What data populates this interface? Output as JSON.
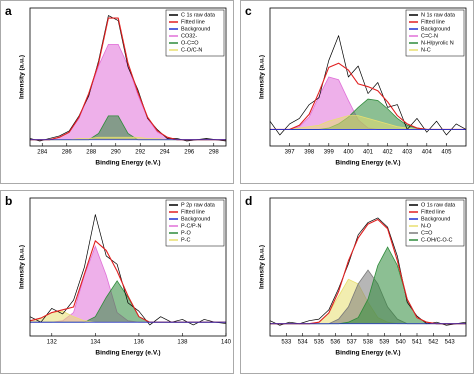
{
  "chart_data": [
    {
      "type": "line",
      "label": "a",
      "xlabel": "Binding Energy (e.V.)",
      "ylabel": "Intensity (a.u.)",
      "legend": "top-right",
      "x": [
        283,
        283.8,
        284.6,
        285.4,
        286.2,
        287,
        287.8,
        288.6,
        289.4,
        290.2,
        291,
        291.8,
        292.6,
        293.4,
        294.2,
        295,
        295.8,
        296.6,
        297.4,
        298.2,
        299
      ],
      "xlim": [
        283,
        299
      ],
      "xticks": [
        284,
        286,
        288,
        290,
        292,
        294,
        296,
        298
      ],
      "ylim": [
        0,
        110
      ],
      "series": [
        {
          "name": "C 1s raw data",
          "color": "#000000",
          "kind": "line",
          "values": [
            6,
            4,
            6,
            8,
            12,
            24,
            40,
            68,
            104,
            100,
            63,
            45,
            22,
            13,
            6,
            6,
            4,
            5,
            6,
            5,
            4
          ]
        },
        {
          "name": "Fitted line",
          "color": "#e02020",
          "kind": "line",
          "values": [
            5,
            5,
            5,
            7,
            11,
            23,
            42,
            66,
            102,
            102,
            66,
            43,
            23,
            12,
            7,
            5,
            5,
            5,
            5,
            5,
            5
          ]
        },
        {
          "name": "Background",
          "color": "#2030d0",
          "kind": "line",
          "values": [
            5,
            5,
            5,
            5,
            5,
            5,
            5,
            5,
            5,
            5,
            5,
            5,
            5,
            5,
            5,
            5,
            5,
            5,
            5,
            5,
            5
          ]
        },
        {
          "name": "CO32-",
          "color": "#e070d8",
          "kind": "area",
          "values": [
            5,
            5,
            5,
            7,
            11,
            22,
            41,
            64,
            81,
            81,
            64,
            41,
            22,
            11,
            7,
            5,
            5,
            5,
            5,
            5,
            5
          ]
        },
        {
          "name": "O-C=O",
          "color": "#2e8b3a",
          "kind": "area",
          "values": [
            5,
            5,
            5,
            5,
            5,
            5,
            5,
            10,
            24,
            24,
            10,
            5,
            5,
            5,
            5,
            5,
            5,
            5,
            5,
            5,
            5
          ]
        },
        {
          "name": "C-O/C-N",
          "color": "#e8df70",
          "kind": "area",
          "values": [
            5,
            5,
            5,
            5,
            5,
            6,
            6,
            7,
            7,
            7,
            7,
            7,
            6,
            6,
            5,
            5,
            5,
            5,
            5,
            5,
            5
          ]
        }
      ]
    },
    {
      "type": "line",
      "label": "b",
      "xlabel": "Binding Energy (e.V.)",
      "ylabel": "Intensity (a.u.)",
      "legend": "top-right",
      "x": [
        131,
        131.5,
        132,
        132.5,
        133,
        133.5,
        134,
        134.5,
        135,
        135.5,
        136,
        136.5,
        137,
        137.5,
        138,
        138.5,
        139,
        139.5,
        140
      ],
      "xlim": [
        131,
        140
      ],
      "xticks": [
        132,
        134,
        136,
        138,
        140
      ],
      "ylim": [
        0,
        100
      ],
      "series": [
        {
          "name": "P 2p raw data",
          "color": "#000000",
          "kind": "line",
          "values": [
            14,
            10,
            20,
            16,
            26,
            50,
            88,
            58,
            52,
            24,
            18,
            8,
            14,
            10,
            12,
            8,
            12,
            10,
            9
          ]
        },
        {
          "name": "Fitted line",
          "color": "#e02020",
          "kind": "line",
          "values": [
            11,
            13,
            17,
            19,
            21,
            45,
            69,
            62,
            47,
            29,
            14,
            10,
            10,
            10,
            10,
            10,
            10,
            10,
            10
          ]
        },
        {
          "name": "Background",
          "color": "#2030d0",
          "kind": "line",
          "values": [
            10,
            10,
            10,
            10,
            10,
            10,
            10,
            10,
            10,
            10,
            10,
            10,
            10,
            10,
            10,
            10,
            10,
            10,
            10
          ]
        },
        {
          "name": "P-C/P-N",
          "color": "#e070d8",
          "kind": "area",
          "values": [
            10,
            10,
            10,
            11,
            17,
            44,
            65,
            44,
            17,
            11,
            10,
            10,
            10,
            10,
            10,
            10,
            10,
            10,
            10
          ]
        },
        {
          "name": "P-O",
          "color": "#2e8b3a",
          "kind": "area",
          "values": [
            10,
            10,
            10,
            10,
            10,
            10,
            14,
            28,
            40,
            28,
            14,
            10,
            10,
            10,
            10,
            10,
            10,
            10,
            10
          ]
        },
        {
          "name": "P-C",
          "color": "#e8df70",
          "kind": "area",
          "values": [
            11,
            13,
            17,
            18,
            14,
            11,
            10,
            10,
            10,
            10,
            10,
            10,
            10,
            10,
            10,
            10,
            10,
            10,
            10
          ]
        }
      ]
    },
    {
      "type": "line",
      "label": "c",
      "xlabel": "Binding Energy (e.V.)",
      "ylabel": "Intensity (a.u.)",
      "legend": "top-right",
      "x": [
        396,
        396.5,
        397,
        397.5,
        398,
        398.5,
        399,
        399.5,
        400,
        400.5,
        401,
        401.5,
        402,
        402.5,
        403,
        403.5,
        404,
        404.5,
        405,
        405.5,
        406
      ],
      "xlim": [
        396,
        406
      ],
      "xticks": [
        397,
        398,
        399,
        400,
        401,
        402,
        403,
        404,
        405
      ],
      "ylim": [
        0,
        100
      ],
      "series": [
        {
          "name": "N 1s raw data",
          "color": "#000000",
          "kind": "line",
          "values": [
            18,
            8,
            16,
            20,
            30,
            35,
            62,
            80,
            50,
            58,
            38,
            46,
            28,
            30,
            12,
            20,
            10,
            18,
            8,
            16,
            12
          ]
        },
        {
          "name": "Fitted line",
          "color": "#e02020",
          "kind": "line",
          "values": [
            12,
            12,
            12,
            15,
            23,
            39,
            57,
            60,
            55,
            45,
            43,
            40,
            32,
            22,
            16,
            13,
            12,
            12,
            12,
            12,
            12
          ]
        },
        {
          "name": "Background",
          "color": "#2030d0",
          "kind": "line",
          "values": [
            12,
            12,
            12,
            12,
            12,
            12,
            12,
            12,
            12,
            12,
            12,
            12,
            12,
            12,
            12,
            12,
            12,
            12,
            12,
            12,
            12
          ]
        },
        {
          "name": "C=C-N",
          "color": "#e070d8",
          "kind": "area",
          "values": [
            12,
            12,
            12,
            14,
            21,
            36,
            50,
            48,
            33,
            19,
            13,
            12,
            12,
            12,
            12,
            12,
            12,
            12,
            12,
            12,
            12
          ]
        },
        {
          "name": "N-H/pyrolic N",
          "color": "#2e8b3a",
          "kind": "area",
          "values": [
            12,
            12,
            12,
            12,
            12,
            12,
            13,
            16,
            21,
            28,
            34,
            33,
            27,
            20,
            15,
            13,
            12,
            12,
            12,
            12,
            12
          ]
        },
        {
          "name": "N-C",
          "color": "#e8df70",
          "kind": "area",
          "values": [
            12,
            12,
            12,
            13,
            14,
            15,
            18,
            20,
            22,
            22,
            20,
            18,
            16,
            14,
            13,
            12,
            12,
            12,
            12,
            12,
            12
          ]
        }
      ]
    },
    {
      "type": "line",
      "label": "d",
      "xlabel": "Binding Energy (e.V.)",
      "ylabel": "Intensity (a.u.)",
      "legend": "top-right",
      "x": [
        532,
        532.6,
        533.2,
        533.8,
        534.4,
        535,
        535.6,
        536.2,
        536.8,
        537.4,
        538,
        538.6,
        539.2,
        539.8,
        540.4,
        541,
        541.6,
        542.2,
        542.8,
        543.4,
        544
      ],
      "xlim": [
        532,
        544
      ],
      "xticks": [
        533,
        534,
        535,
        536,
        537,
        538,
        539,
        540,
        541,
        542,
        543
      ],
      "ylim": [
        0,
        90
      ],
      "series": [
        {
          "name": "O 1s raw data",
          "color": "#000000",
          "kind": "line",
          "values": [
            10,
            7,
            9,
            8,
            10,
            11,
            17,
            31,
            47,
            66,
            74,
            77,
            71,
            52,
            22,
            13,
            8,
            9,
            7,
            8,
            9
          ]
        },
        {
          "name": "Fitted line",
          "color": "#e02020",
          "kind": "line",
          "values": [
            8,
            8,
            8,
            8,
            8,
            9,
            15,
            29,
            49,
            64,
            73,
            76,
            70,
            49,
            24,
            12,
            9,
            8,
            8,
            8,
            8
          ]
        },
        {
          "name": "Background",
          "color": "#2030d0",
          "kind": "line",
          "values": [
            8,
            8,
            8,
            8,
            8,
            8,
            8,
            8,
            8,
            8,
            8,
            8,
            8,
            8,
            8,
            8,
            8,
            8,
            8,
            8,
            8
          ]
        },
        {
          "name": "N-O",
          "color": "#e8df70",
          "kind": "area",
          "values": [
            8,
            8,
            8,
            8,
            8,
            9,
            15,
            26,
            37,
            34,
            22,
            12,
            9,
            8,
            8,
            8,
            8,
            8,
            8,
            8,
            8
          ]
        },
        {
          "name": "C=O",
          "color": "#7a7a7a",
          "kind": "area",
          "values": [
            8,
            8,
            8,
            8,
            8,
            8,
            8,
            11,
            19,
            34,
            43,
            34,
            19,
            11,
            8,
            8,
            8,
            8,
            8,
            8,
            8
          ]
        },
        {
          "name": "C-OH/C-O-C",
          "color": "#2e8b3a",
          "kind": "area",
          "values": [
            8,
            8,
            8,
            8,
            8,
            8,
            8,
            8,
            9,
            12,
            24,
            46,
            58,
            46,
            24,
            12,
            9,
            8,
            8,
            8,
            8
          ]
        }
      ]
    }
  ]
}
